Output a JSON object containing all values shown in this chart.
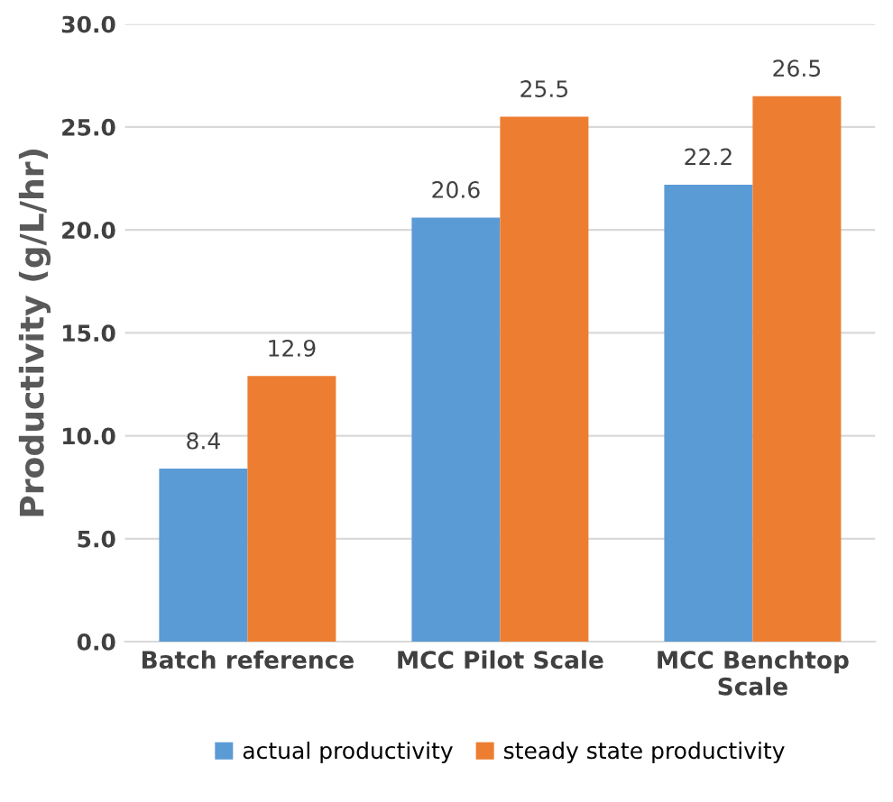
{
  "chart_data": {
    "type": "bar",
    "ylabel": "Productivity (g/L/hr)",
    "categories": [
      "Batch reference",
      "MCC Pilot Scale",
      "MCC Benchtop\nScale"
    ],
    "series": [
      {
        "name": "actual productivity",
        "color": "#5b9bd5",
        "values": [
          8.4,
          20.6,
          22.2
        ]
      },
      {
        "name": "steady state productivity",
        "color": "#ed7d31",
        "values": [
          12.9,
          25.5,
          26.5
        ]
      }
    ],
    "ylim": [
      0,
      30
    ],
    "yticks": [
      {
        "value": 0,
        "label": "0.0"
      },
      {
        "value": 5,
        "label": "5.0"
      },
      {
        "value": 10,
        "label": "10.0"
      },
      {
        "value": 15,
        "label": "15.0"
      },
      {
        "value": 20,
        "label": "20.0"
      },
      {
        "value": 25,
        "label": "25.0"
      },
      {
        "value": 30,
        "label": "30.0"
      }
    ],
    "grid": "y",
    "legend": "bottom",
    "data_labels": true
  }
}
